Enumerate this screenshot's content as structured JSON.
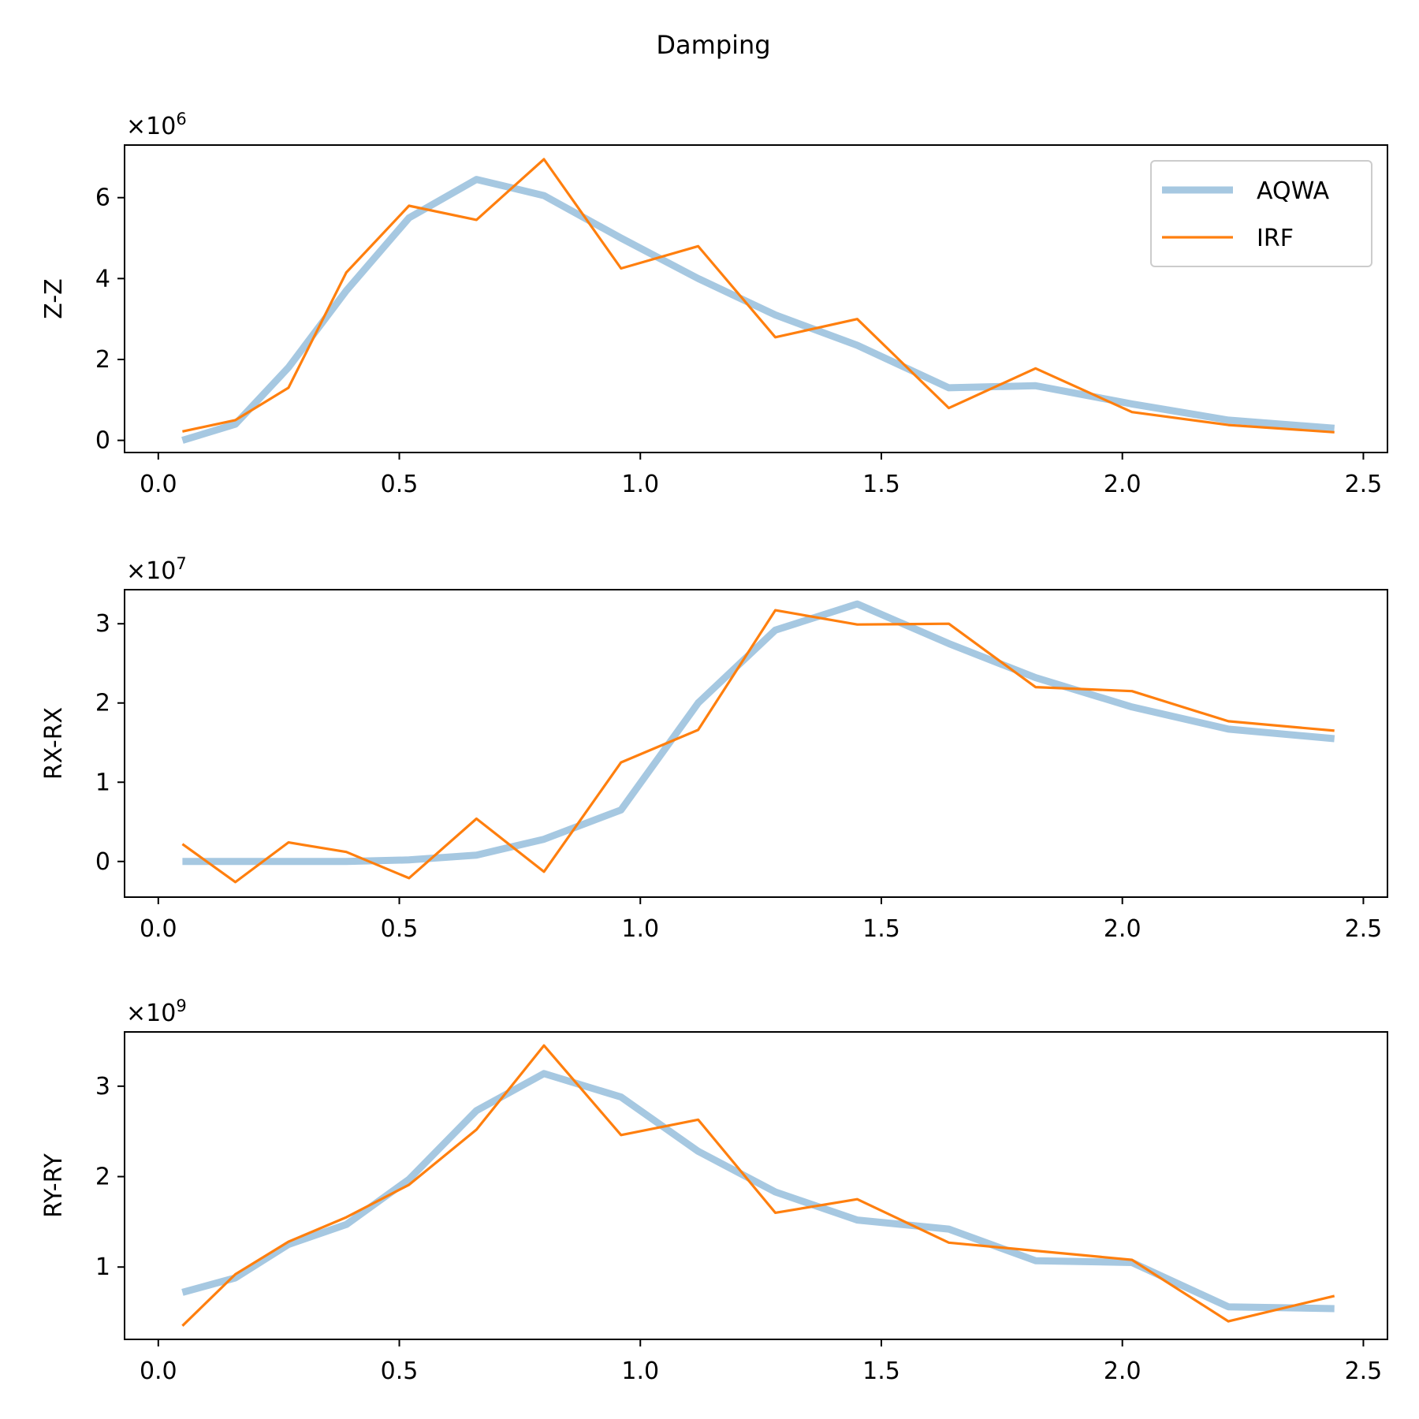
{
  "figure": {
    "title": "Damping"
  },
  "colors": {
    "aqwa": "#a6c8e1",
    "irf": "#ff7f0e",
    "axes": "#000000",
    "background": "#ffffff"
  },
  "legend": {
    "placement": "top-right",
    "entries": [
      "AQWA",
      "IRF"
    ]
  },
  "chart_data": [
    {
      "type": "line",
      "title": "",
      "ylabel": "Z-Z",
      "xlabel": "",
      "offset_text": "×10^6",
      "exponent": 6,
      "xlim": [
        -0.07,
        2.55
      ],
      "ylim": [
        -300000.0,
        7300000.0
      ],
      "xticks": [
        0.0,
        0.5,
        1.0,
        1.5,
        2.0,
        2.5
      ],
      "xtick_labels": [
        "0.0",
        "0.5",
        "1.0",
        "1.5",
        "2.0",
        "2.5"
      ],
      "yticks": [
        0,
        2000000.0,
        4000000.0,
        6000000.0
      ],
      "ytick_labels": [
        "0",
        "2",
        "4",
        "6"
      ],
      "grid": false,
      "legend": true,
      "series": [
        {
          "name": "AQWA",
          "x": [
            0.05,
            0.16,
            0.27,
            0.39,
            0.52,
            0.66,
            0.8,
            0.96,
            1.12,
            1.28,
            1.45,
            1.64,
            1.82,
            2.02,
            2.22,
            2.44
          ],
          "y": [
            0.0,
            400000.0,
            1800000.0,
            3700000.0,
            5500000.0,
            6450000.0,
            6050000.0,
            5000000.0,
            4000000.0,
            3100000.0,
            2350000.0,
            1300000.0,
            1350000.0,
            900000.0,
            500000.0,
            300000.0
          ]
        },
        {
          "name": "IRF",
          "x": [
            0.05,
            0.16,
            0.27,
            0.39,
            0.52,
            0.66,
            0.8,
            0.96,
            1.12,
            1.28,
            1.45,
            1.64,
            1.82,
            2.02,
            2.22,
            2.44
          ],
          "y": [
            220000.0,
            500000.0,
            1300000.0,
            4150000.0,
            5800000.0,
            5450000.0,
            6950000.0,
            4250000.0,
            4800000.0,
            2550000.0,
            3000000.0,
            800000.0,
            1780000.0,
            700000.0,
            380000.0,
            200000.0
          ]
        }
      ]
    },
    {
      "type": "line",
      "title": "",
      "ylabel": "RX-RX",
      "xlabel": "",
      "offset_text": "×10^7",
      "exponent": 7,
      "xlim": [
        -0.07,
        2.55
      ],
      "ylim": [
        -4500000.0,
        34300000.0
      ],
      "xticks": [
        0.0,
        0.5,
        1.0,
        1.5,
        2.0,
        2.5
      ],
      "xtick_labels": [
        "0.0",
        "0.5",
        "1.0",
        "1.5",
        "2.0",
        "2.5"
      ],
      "yticks": [
        0,
        10000000.0,
        20000000.0,
        30000000.0
      ],
      "ytick_labels": [
        "0",
        "1",
        "2",
        "3"
      ],
      "grid": false,
      "legend": false,
      "series": [
        {
          "name": "AQWA",
          "x": [
            0.05,
            0.16,
            0.27,
            0.39,
            0.52,
            0.66,
            0.8,
            0.96,
            1.12,
            1.28,
            1.45,
            1.64,
            1.82,
            2.02,
            2.22,
            2.44
          ],
          "y": [
            0.0,
            0.0,
            0.0,
            0.0,
            200000.0,
            800000.0,
            2800000.0,
            6500000.0,
            20000000.0,
            29200000.0,
            32500000.0,
            27500000.0,
            23200000.0,
            19500000.0,
            16700000.0,
            15500000.0
          ]
        },
        {
          "name": "IRF",
          "x": [
            0.05,
            0.16,
            0.27,
            0.39,
            0.52,
            0.66,
            0.8,
            0.96,
            1.12,
            1.28,
            1.45,
            1.64,
            1.82,
            2.02,
            2.22,
            2.44
          ],
          "y": [
            2200000.0,
            -2600000.0,
            2400000.0,
            1200000.0,
            -2100000.0,
            5400000.0,
            -1300000.0,
            12500000.0,
            16600000.0,
            31700000.0,
            29900000.0,
            30000000.0,
            22000000.0,
            21500000.0,
            17700000.0,
            16500000.0
          ]
        }
      ]
    },
    {
      "type": "line",
      "title": "",
      "ylabel": "RY-RY",
      "xlabel": "",
      "offset_text": "×10^9",
      "exponent": 9,
      "xlim": [
        -0.07,
        2.55
      ],
      "ylim": [
        200000000.0,
        3600000000.0
      ],
      "xticks": [
        0.0,
        0.5,
        1.0,
        1.5,
        2.0,
        2.5
      ],
      "xtick_labels": [
        "0.0",
        "0.5",
        "1.0",
        "1.5",
        "2.0",
        "2.5"
      ],
      "yticks": [
        1000000000.0,
        2000000000.0,
        3000000000.0
      ],
      "ytick_labels": [
        "1",
        "2",
        "3"
      ],
      "grid": false,
      "legend": false,
      "series": [
        {
          "name": "AQWA",
          "x": [
            0.05,
            0.16,
            0.27,
            0.39,
            0.52,
            0.66,
            0.8,
            0.96,
            1.12,
            1.28,
            1.45,
            1.64,
            1.82,
            2.02,
            2.22,
            2.44
          ],
          "y": [
            720000000.0,
            880000000.0,
            1250000000.0,
            1470000000.0,
            1970000000.0,
            2730000000.0,
            3140000000.0,
            2880000000.0,
            2280000000.0,
            1830000000.0,
            1520000000.0,
            1420000000.0,
            1070000000.0,
            1050000000.0,
            560000000.0,
            540000000.0
          ]
        },
        {
          "name": "IRF",
          "x": [
            0.05,
            0.16,
            0.27,
            0.39,
            0.52,
            0.66,
            0.8,
            0.96,
            1.12,
            1.28,
            1.45,
            1.64,
            1.82,
            2.02,
            2.22,
            2.44
          ],
          "y": [
            350000000.0,
            920000000.0,
            1280000000.0,
            1550000000.0,
            1910000000.0,
            2520000000.0,
            3450000000.0,
            2460000000.0,
            2630000000.0,
            1600000000.0,
            1750000000.0,
            1270000000.0,
            1180000000.0,
            1080000000.0,
            400000000.0,
            680000000.0
          ]
        }
      ]
    }
  ]
}
